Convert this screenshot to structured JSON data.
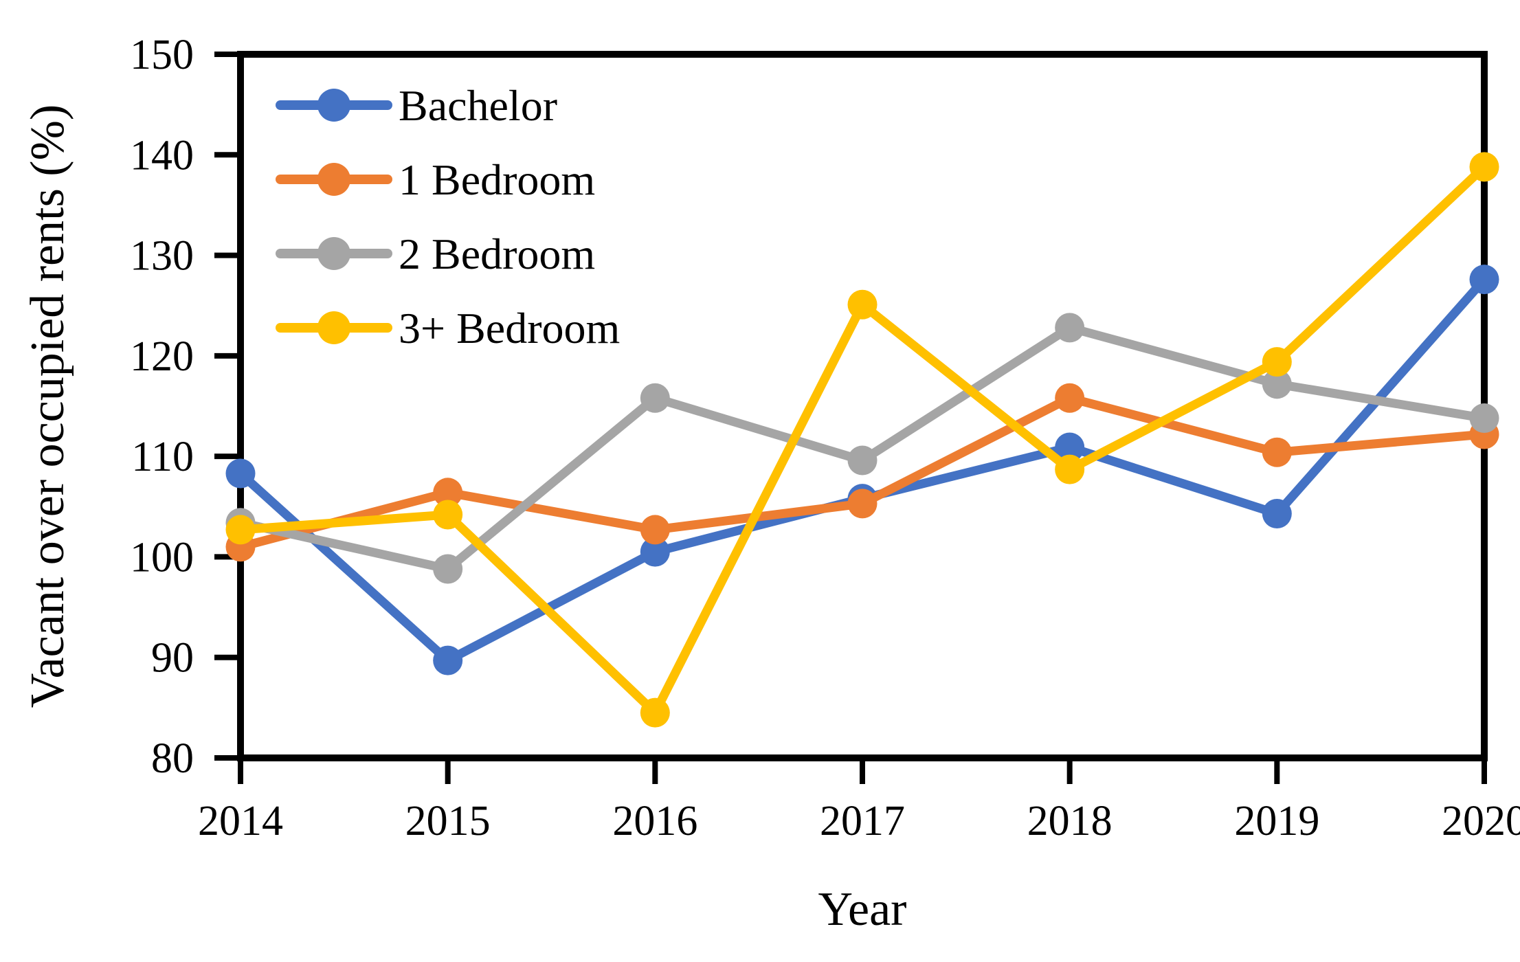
{
  "chart_data": {
    "type": "line",
    "title": "",
    "xlabel": "Year",
    "ylabel": "Vacant over occupied rents (%)",
    "x": [
      2014,
      2015,
      2016,
      2017,
      2018,
      2019,
      2020
    ],
    "series": [
      {
        "name": "Bachelor",
        "color": "#4472C4",
        "values": [
          108.3,
          89.7,
          100.5,
          105.8,
          110.9,
          104.3,
          127.6
        ]
      },
      {
        "name": "1 Bedroom",
        "color": "#ED7D31",
        "values": [
          101.0,
          106.4,
          102.7,
          105.3,
          115.8,
          110.4,
          112.2
        ]
      },
      {
        "name": "2 Bedroom",
        "color": "#A5A5A5",
        "values": [
          103.4,
          98.8,
          115.8,
          109.6,
          122.8,
          117.2,
          113.8
        ]
      },
      {
        "name": "3+ Bedroom",
        "color": "#FFC000",
        "values": [
          102.7,
          104.2,
          84.5,
          125.1,
          108.7,
          119.4,
          138.8
        ]
      }
    ],
    "ylim": [
      80,
      150
    ],
    "ytick_step": 10,
    "yticks": [
      80,
      90,
      100,
      110,
      120,
      130,
      140,
      150
    ],
    "grid": false,
    "legend_position": "top-left-inside",
    "axis_color": "#000000",
    "background": "#FFFFFF",
    "marker": "circle"
  }
}
